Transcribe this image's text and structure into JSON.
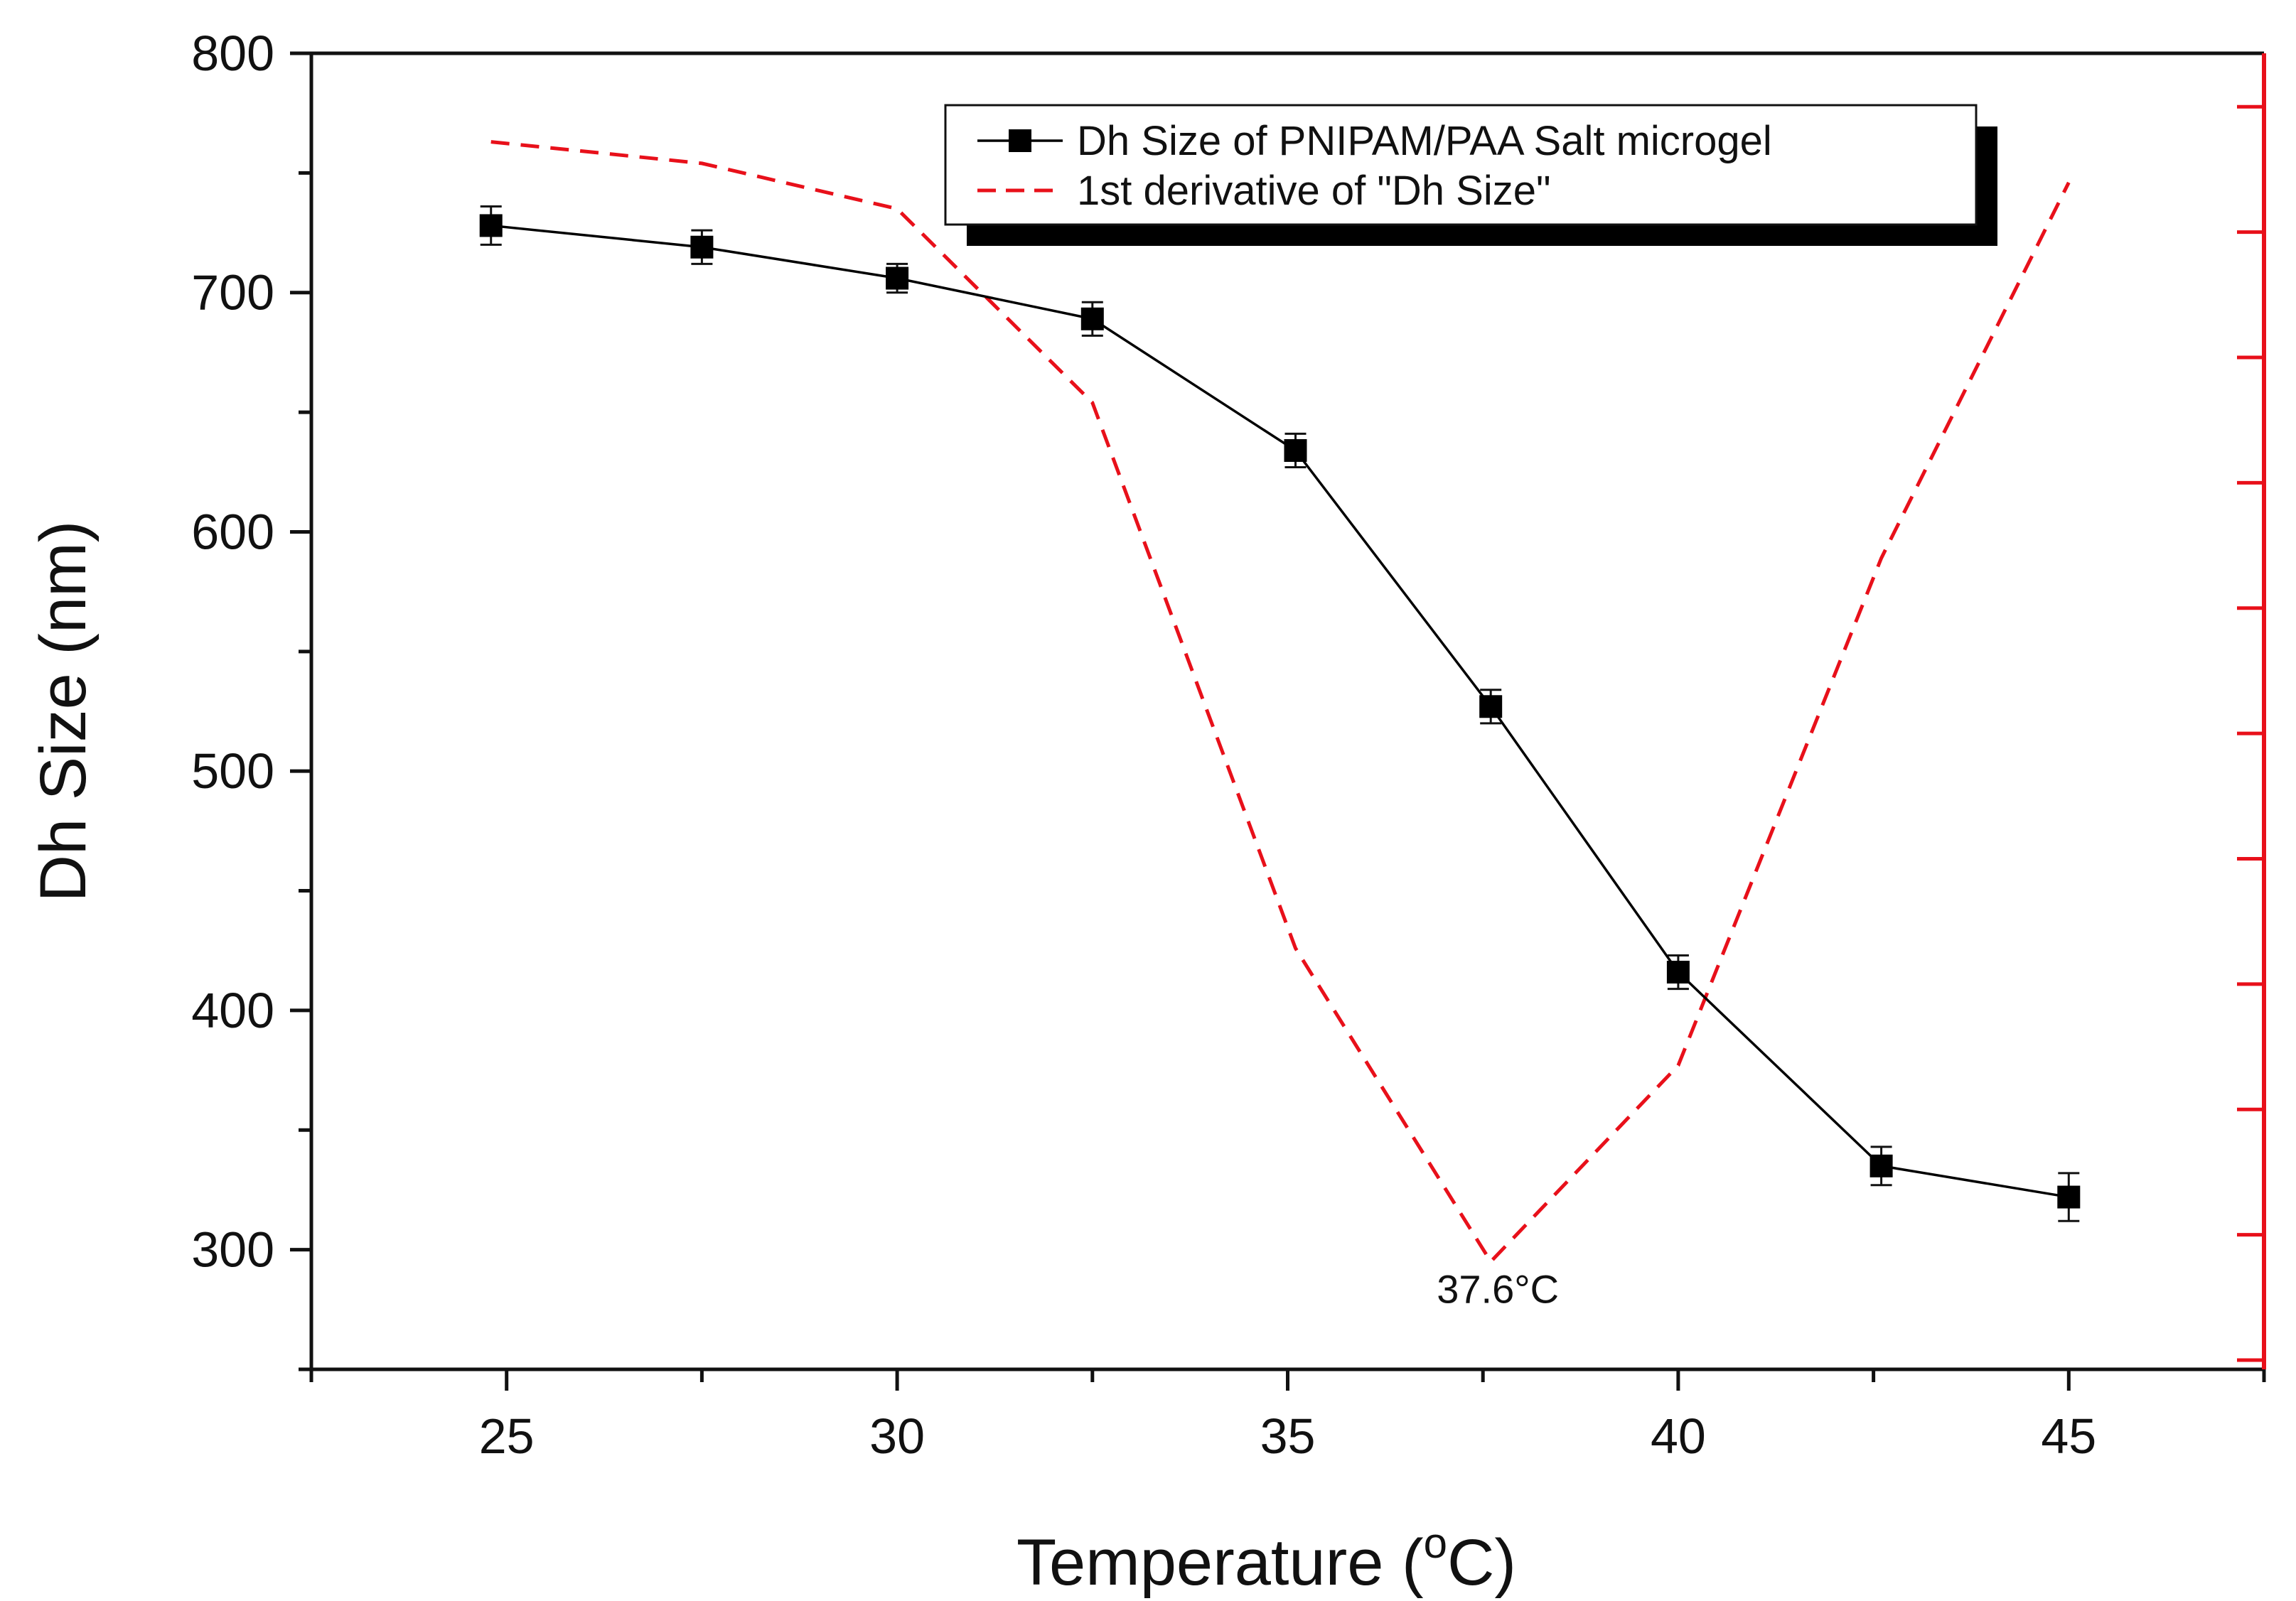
{
  "chart_data": {
    "type": "line",
    "title": "",
    "xlabel": "Temperature (",
    "xlabel_degree": "o",
    "xlabel_suffix": "C)",
    "ylabel": "Dh Size (nm)",
    "xlim": [
      22.5,
      47.5
    ],
    "ylim": [
      250,
      800
    ],
    "xticks": [
      25,
      30,
      35,
      40,
      45
    ],
    "yticks": [
      300,
      400,
      500,
      600,
      700,
      800
    ],
    "right_axis": {
      "color": "#e8101a",
      "ticks_only": true
    },
    "series": [
      {
        "name": "Dh Size of PNIPAM/PAA Salt microgel",
        "color": "#000000",
        "style": "solid",
        "marker": "square",
        "axis": "left",
        "x": [
          24.8,
          27.5,
          30.0,
          32.5,
          35.1,
          37.6,
          40.0,
          42.6,
          45.0
        ],
        "y": [
          728,
          719,
          706,
          689,
          634,
          527,
          416,
          335,
          322
        ],
        "yerr": [
          8,
          7,
          6,
          7,
          7,
          7,
          7,
          8,
          10
        ]
      },
      {
        "name": "1st derivative of \"Dh Size\"",
        "color": "#e8101a",
        "style": "dashed",
        "marker": "none",
        "axis": "right",
        "x": [
          24.8,
          27.5,
          30.0,
          32.5,
          35.1,
          37.6,
          40.0,
          42.6,
          45.0
        ],
        "y_plot": [
          763,
          754,
          735,
          654,
          426,
          295,
          377,
          589,
          746
        ]
      }
    ],
    "annotations": [
      {
        "text": "37.6°C",
        "x": 37.6,
        "y": 295
      }
    ],
    "legend_position": "top-right"
  }
}
